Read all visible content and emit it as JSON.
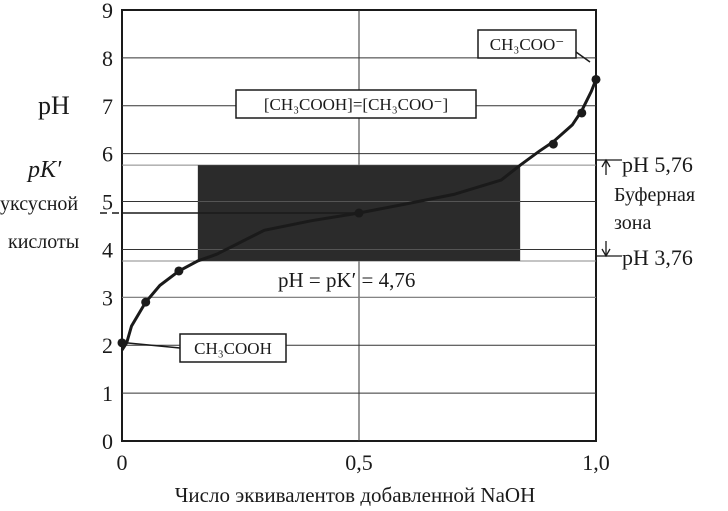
{
  "chart_data": {
    "type": "line",
    "xlabel": "Число эквивалентов добавленной NaOH",
    "ylabel": "pH",
    "xlim": [
      0,
      1.0
    ],
    "ylim": [
      0,
      9
    ],
    "x_ticks": [
      "0",
      "0,5",
      "1,0"
    ],
    "y_ticks": [
      "0",
      "1",
      "2",
      "3",
      "4",
      "5",
      "6",
      "7",
      "8",
      "9"
    ],
    "grid": true,
    "series": [
      {
        "values": [
          [
            0.0,
            1.9
          ],
          [
            0.01,
            2.05
          ],
          [
            0.02,
            2.4
          ],
          [
            0.05,
            2.9
          ],
          [
            0.08,
            3.25
          ],
          [
            0.12,
            3.55
          ],
          [
            0.16,
            3.76
          ],
          [
            0.2,
            3.9
          ],
          [
            0.3,
            4.4
          ],
          [
            0.4,
            4.6
          ],
          [
            0.5,
            4.76
          ],
          [
            0.6,
            4.95
          ],
          [
            0.7,
            5.15
          ],
          [
            0.8,
            5.45
          ],
          [
            0.84,
            5.76
          ],
          [
            0.88,
            6.05
          ],
          [
            0.91,
            6.25
          ],
          [
            0.95,
            6.6
          ],
          [
            0.97,
            6.9
          ],
          [
            0.99,
            7.3
          ],
          [
            1.0,
            7.55
          ]
        ],
        "markers": [
          [
            0.0,
            2.05
          ],
          [
            0.05,
            2.9
          ],
          [
            0.12,
            3.55
          ],
          [
            0.5,
            4.76
          ],
          [
            0.91,
            6.2
          ],
          [
            0.97,
            6.85
          ],
          [
            1.0,
            7.55
          ]
        ]
      }
    ],
    "buffer_zone": {
      "x": [
        0.16,
        0.84
      ],
      "y": [
        3.76,
        5.76
      ]
    },
    "pk_line": 4.76,
    "annotations": {
      "pk_label": "pK′",
      "pk_sub1": "уксусной",
      "pk_sub2": "кислоты",
      "equality_box": "[CH₃COOH]=[CH₃COO⁻]",
      "acetate_box": "CH₃COO⁻",
      "acid_box": "CH₃COOH",
      "pk_eq": "pH = pK′ = 4,76",
      "ph_high": "pH 5,76",
      "ph_low": "pH 3,76",
      "buffer_1": "Буферная",
      "buffer_2": "зона"
    }
  }
}
